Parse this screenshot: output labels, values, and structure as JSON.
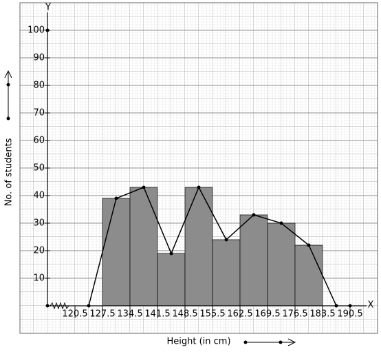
{
  "chart_data": {
    "type": "histogram",
    "x_label": "Height (in cm)",
    "y_label": "No. of students",
    "x_axis_name": "X",
    "y_axis_name": "Y",
    "bins": [
      120.5,
      127.5,
      134.5,
      141.5,
      148.5,
      155.5,
      162.5,
      169.5,
      176.5,
      183.5,
      190.5
    ],
    "values": [
      0,
      39,
      43,
      19,
      43,
      24,
      33,
      30,
      22,
      0
    ],
    "color": "#8c8c8c",
    "frequency_polygon": true,
    "xlim": [
      106.5,
      197.5
    ],
    "ylim": [
      -10,
      110
    ],
    "xticks": [
      120.5,
      127.5,
      134.5,
      141.5,
      148.5,
      155.5,
      162.5,
      169.5,
      176.5,
      183.5,
      190.5
    ],
    "yticks": [
      10,
      20,
      30,
      40,
      50,
      60,
      70,
      80,
      90,
      100
    ],
    "grid": true
  }
}
